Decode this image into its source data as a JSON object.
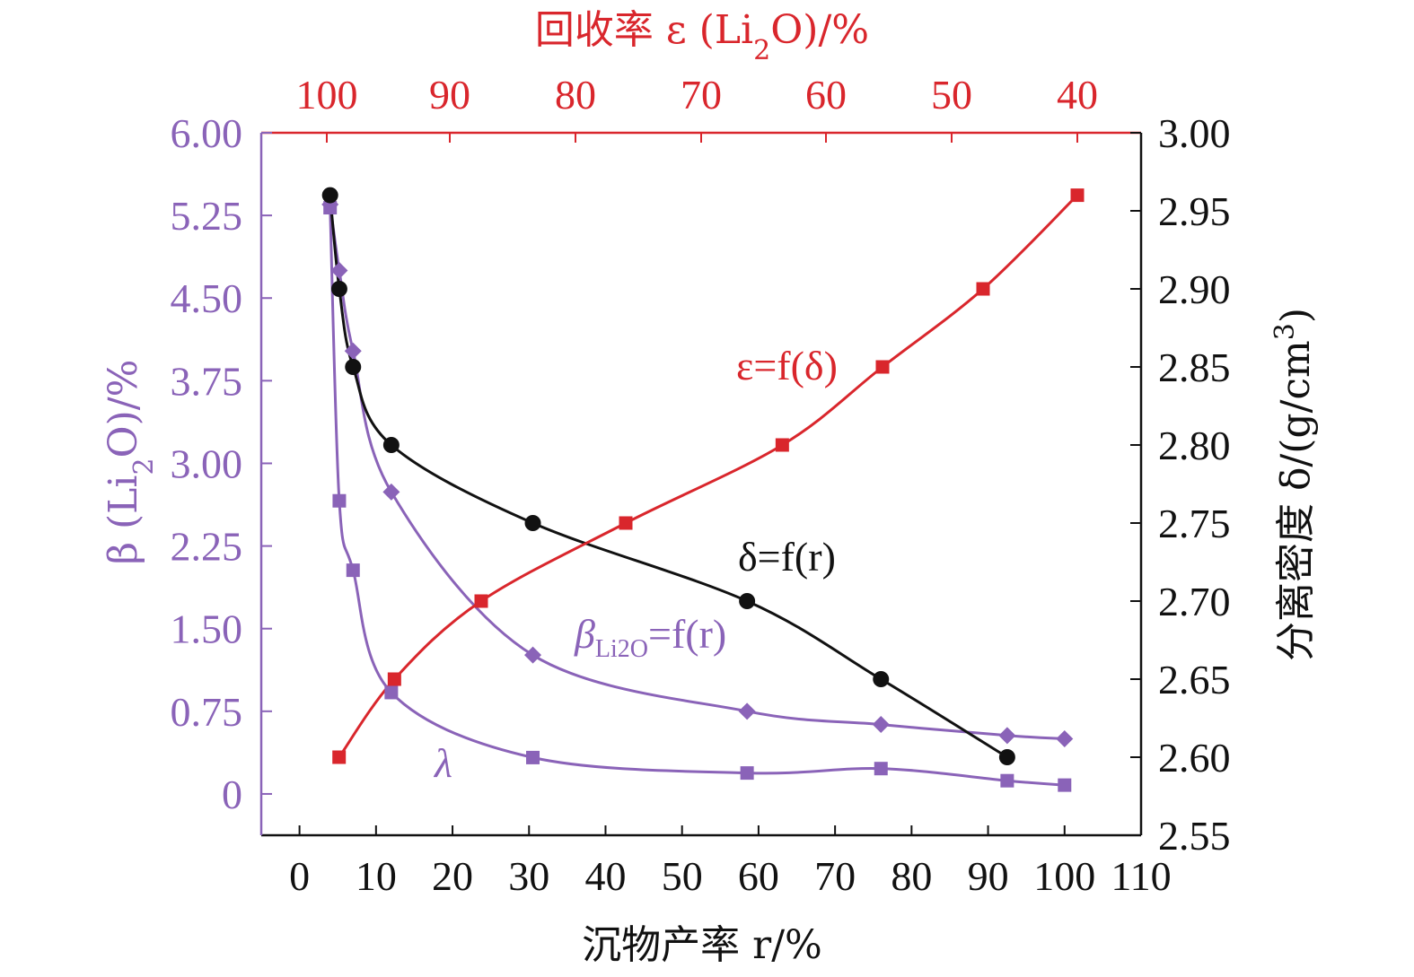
{
  "colors": {
    "epsilon": "#d9262c",
    "beta": "#8a63b8",
    "delta": "#111111"
  },
  "axes": {
    "bottom": {
      "label": "沉物产率 r/%",
      "range": [
        -5,
        110
      ],
      "ticks": [
        0,
        10,
        20,
        30,
        40,
        50,
        60,
        70,
        80,
        90,
        100,
        110
      ],
      "tick_labels": [
        "0",
        "10",
        "20",
        "30",
        "40",
        "50",
        "60",
        "70",
        "80",
        "90",
        "100",
        "110"
      ]
    },
    "top": {
      "label": "回收率 ε (Li₂O)/%",
      "ticks": [
        100,
        90,
        80,
        70,
        60,
        50,
        40
      ],
      "tick_labels": [
        "100",
        "90",
        "80",
        "70",
        "60",
        "50",
        "40"
      ]
    },
    "left": {
      "label": "β (Li₂O)/%",
      "range": [
        -0.375,
        6.0
      ],
      "ticks": [
        0,
        0.75,
        1.5,
        2.25,
        3.0,
        3.75,
        4.5,
        5.25,
        6.0
      ],
      "tick_labels": [
        "0",
        "0.75",
        "1.50",
        "2.25",
        "3.00",
        "3.75",
        "4.50",
        "5.25",
        "6.00"
      ]
    },
    "right": {
      "label": "分离密度 δ/(g/cm³)",
      "range": [
        2.55,
        3.0
      ],
      "ticks": [
        2.55,
        2.6,
        2.65,
        2.7,
        2.75,
        2.8,
        2.85,
        2.9,
        2.95,
        3.0
      ],
      "tick_labels": [
        "2.55",
        "2.60",
        "2.65",
        "2.70",
        "2.75",
        "2.80",
        "2.85",
        "2.90",
        "2.95",
        "3.00"
      ]
    }
  },
  "annotations": {
    "epsilon": "ε=f(δ)",
    "delta": "δ=f(r)",
    "beta": "βLi₂O=f(r)",
    "lambda": "λ"
  },
  "chart_data": {
    "type": "scatter",
    "grid": false,
    "series": [
      {
        "name": "βLi₂O=f(r)",
        "marker": "diamond",
        "axis": "left",
        "x_axis": "bottom",
        "points": [
          [
            4.0,
            5.35
          ],
          [
            5.2,
            4.75
          ],
          [
            7.0,
            4.02
          ],
          [
            12.0,
            2.74
          ],
          [
            30.5,
            1.26
          ],
          [
            58.5,
            0.75
          ],
          [
            76.0,
            0.63
          ],
          [
            92.5,
            0.53
          ],
          [
            100.0,
            0.5
          ]
        ]
      },
      {
        "name": "λ",
        "marker": "square",
        "axis": "left",
        "x_axis": "bottom",
        "points": [
          [
            4.0,
            5.32
          ],
          [
            5.2,
            2.66
          ],
          [
            7.0,
            2.03
          ],
          [
            12.0,
            0.92
          ],
          [
            30.5,
            0.33
          ],
          [
            58.5,
            0.19
          ],
          [
            76.0,
            0.23
          ],
          [
            92.5,
            0.12
          ],
          [
            100.0,
            0.08
          ]
        ]
      },
      {
        "name": "δ=f(r)",
        "marker": "circle",
        "axis": "right",
        "x_axis": "bottom",
        "points": [
          [
            4.0,
            2.96
          ],
          [
            5.2,
            2.9
          ],
          [
            7.0,
            2.85
          ],
          [
            12.0,
            2.8
          ],
          [
            30.5,
            2.75
          ],
          [
            58.5,
            2.7
          ],
          [
            76.0,
            2.65
          ],
          [
            92.5,
            2.6
          ]
        ]
      },
      {
        "name": "ε=f(δ)",
        "marker": "square",
        "axis": "right",
        "x_axis": "top",
        "points": [
          [
            99.0,
            2.6
          ],
          [
            94.5,
            2.65
          ],
          [
            87.5,
            2.7
          ],
          [
            76.0,
            2.75
          ],
          [
            63.5,
            2.8
          ],
          [
            55.5,
            2.85
          ],
          [
            47.5,
            2.9
          ],
          [
            40.0,
            2.96
          ]
        ]
      }
    ]
  }
}
